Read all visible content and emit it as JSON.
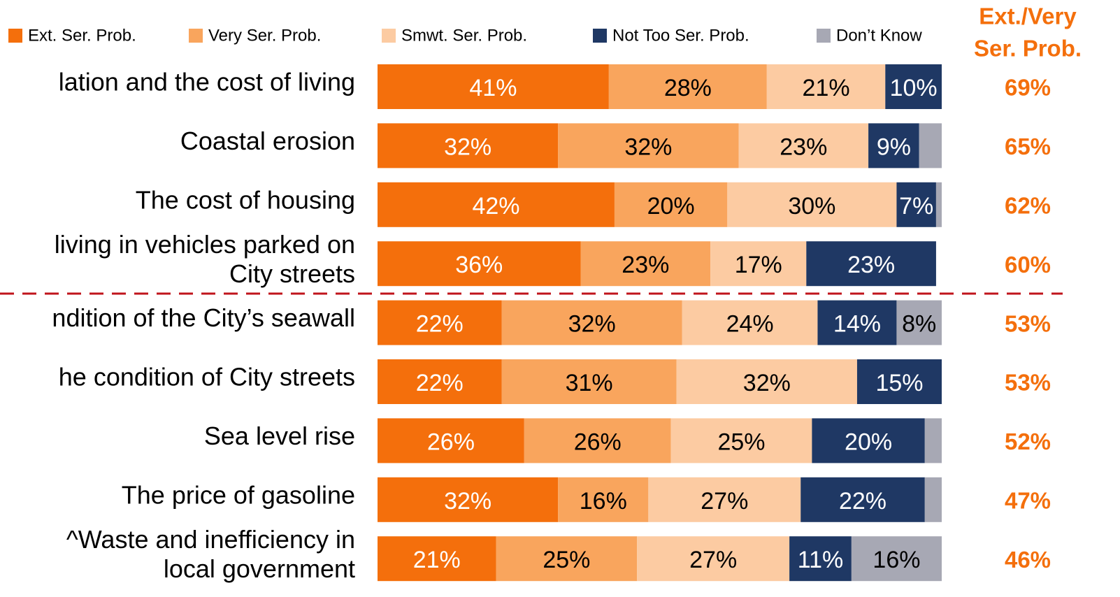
{
  "chart_data": {
    "type": "stacked-bar-horizontal",
    "categories": [
      "lation and the cost of living",
      "Coastal erosion",
      "The cost of housing",
      "living in vehicles parked on\nCity streets",
      "ndition of the City’s seawall",
      "he condition of City streets",
      "Sea level rise",
      "The price of gasoline",
      "^Waste and inefficiency in\nlocal government"
    ],
    "xlim": [
      0,
      100
    ],
    "series": [
      {
        "name": "Ext. Ser. Prob.",
        "color": "#f46f0c",
        "text_color": "#ffffff",
        "values": [
          41,
          32,
          42,
          36,
          22,
          22,
          26,
          32,
          21
        ],
        "value_labels": [
          "41%",
          "32%",
          "42%",
          "36%",
          "22%",
          "22%",
          "26%",
          "32%",
          "21%"
        ]
      },
      {
        "name": "Very Ser. Prob.",
        "color": "#f9a55d",
        "text_color": "#000000",
        "values": [
          28,
          32,
          20,
          23,
          32,
          31,
          26,
          16,
          25
        ],
        "value_labels": [
          "28%",
          "32%",
          "20%",
          "23%",
          "32%",
          "31%",
          "26%",
          "16%",
          "25%"
        ]
      },
      {
        "name": "Smwt. Ser. Prob.",
        "color": "#fccba2",
        "text_color": "#000000",
        "values": [
          21,
          23,
          30,
          17,
          24,
          32,
          25,
          27,
          27
        ],
        "value_labels": [
          "21%",
          "23%",
          "30%",
          "17%",
          "24%",
          "32%",
          "25%",
          "27%",
          "27%"
        ]
      },
      {
        "name": "Not Too Ser. Prob.",
        "color": "#1f3864",
        "text_color": "#ffffff",
        "values": [
          10,
          9,
          7,
          23,
          14,
          15,
          20,
          22,
          11
        ],
        "value_labels": [
          "10%",
          "9%",
          "7%",
          "23%",
          "14%",
          "15%",
          "20%",
          "22%",
          "11%"
        ]
      },
      {
        "name": "Don’t Know",
        "color": "#a7a8b4",
        "text_color": "#000000",
        "values": [
          null,
          4,
          1,
          null,
          8,
          null,
          3,
          3,
          16
        ],
        "value_labels": [
          null,
          null,
          null,
          null,
          "8%",
          null,
          null,
          null,
          "16%"
        ]
      }
    ],
    "totals": {
      "title": [
        "Ext./Very",
        "Ser. Prob."
      ],
      "color": "#f46f0c",
      "values": [
        69,
        65,
        62,
        60,
        53,
        53,
        52,
        47,
        46
      ],
      "value_labels": [
        "69%",
        "65%",
        "62%",
        "60%",
        "53%",
        "53%",
        "52%",
        "47%",
        "46%"
      ]
    }
  }
}
